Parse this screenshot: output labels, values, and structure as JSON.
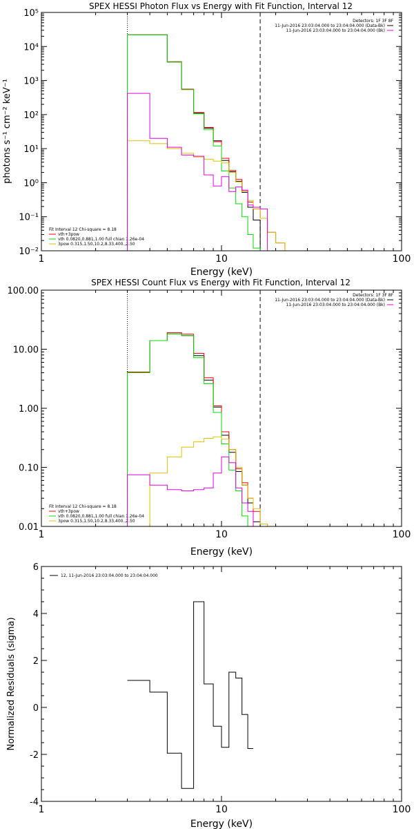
{
  "panels": [
    {
      "title": "SPEX HESSI Photon Flux vs Energy with Fit Function, Interval 12",
      "ylabel": "photons s⁻¹ cm⁻² keV⁻¹",
      "xlabel": "Energy (keV)",
      "top_right": [
        "Detectors: 1F 3F 8F",
        "11-Jun-2016 23:03:04.000 to 23:04:04.000 (Data-Bk)",
        "11-Jun-2016 23:03:04.000 to 23:04:04.000 (Bk)"
      ],
      "bottom_left": [
        "Fit Interval 12   Chi-square = 8.18",
        "vth+3pow",
        "vth 0.0820,0.881,1.00   full chian 1.26e-04",
        "3pow 0.315,1.50,10.2,8.33,400.,2.50"
      ]
    },
    {
      "title": "SPEX HESSI Count Flux vs Energy with Fit Function, Interval 12",
      "ylabel": "",
      "xlabel": "Energy (keV)",
      "top_right": [
        "Detectors: 1F 3F 8F",
        "11-Jun-2016 23:03:04.000 to 23:04:04.000 (Data-Bk)",
        "11-Jun-2016 23:03:04.000 to 23:04:04.000 (Bk)"
      ],
      "bottom_left": [
        "Fit Interval 12   Chi-square = 8.18",
        "vth+3pow",
        "vth 0.0820,0.881,1.00   full chian 1.26e-04",
        "3pow 0.315,1.50,10.2,8.33,400.,2.50"
      ]
    },
    {
      "title": "",
      "ylabel": "Normalized Residuals (sigma)",
      "xlabel": "Energy (keV)",
      "top_left": [
        "12, 11-Jun-2016 23:03:04.000 to 23:04:04.000"
      ]
    }
  ],
  "colors": {
    "black": "#000000",
    "red": "#ff0000",
    "green": "#00dd00",
    "magenta": "#e000e0",
    "yellow": "#e0c000"
  },
  "chart_data": [
    {
      "type": "line",
      "title": "SPEX HESSI Photon Flux vs Energy with Fit Function, Interval 12",
      "xlabel": "Energy (keV)",
      "ylabel": "photons s⁻¹ cm⁻² keV⁻¹",
      "xscale": "log",
      "yscale": "log",
      "xlim": [
        1,
        100
      ],
      "ylim": [
        0.01,
        100000
      ],
      "xticks": [
        1,
        10,
        100
      ],
      "xticklabels": [
        "1",
        "10",
        "100"
      ],
      "yticks": [
        0.01,
        0.1,
        1,
        10,
        100,
        1000,
        10000,
        100000
      ],
      "yticklabels": [
        "10⁻²",
        "10⁻¹",
        "10⁰",
        "10¹",
        "10²",
        "10³",
        "10⁴",
        "10⁵"
      ],
      "vlines": [
        {
          "x": 3.0,
          "style": "dotted"
        },
        {
          "x": 16.4,
          "style": "dashed"
        }
      ],
      "edges": [
        3.0,
        4.0,
        5.0,
        6.0,
        7.0,
        8.0,
        9.0,
        10.0,
        11.0,
        12.0,
        13.0,
        14.0,
        15.0,
        16.4,
        18.0,
        20.0,
        22.5,
        25.0
      ],
      "series": [
        {
          "name": "Data-Bk",
          "color": "#000000",
          "values": [
            22000,
            22000,
            3500,
            550,
            110,
            40,
            17,
            4.5,
            2.1,
            1.1,
            0.52,
            0.19,
            0.08,
            null,
            null,
            null,
            null
          ]
        },
        {
          "name": "vth+3pow",
          "color": "#ff0000",
          "values": [
            22000,
            22000,
            3600,
            560,
            115,
            42,
            16,
            5.2,
            2.3,
            1.25,
            0.6,
            0.27,
            0.17,
            0.09,
            0.035,
            0.017,
            0.01
          ]
        },
        {
          "name": "vth",
          "color": "#00dd00",
          "values": [
            22000,
            22000,
            3500,
            540,
            105,
            36,
            12,
            2.2,
            0.7,
            0.24,
            0.1,
            0.03,
            0.012,
            null,
            null,
            null,
            null
          ]
        },
        {
          "name": "3pow",
          "color": "#e0c000",
          "values": [
            17,
            14,
            10,
            7.3,
            5.7,
            4.9,
            4.3,
            3.8,
            2.0,
            1.05,
            0.55,
            0.3,
            0.17,
            0.09,
            0.035,
            0.017,
            0.01
          ]
        },
        {
          "name": "Bk",
          "color": "#e000e0",
          "values": [
            420,
            20,
            11,
            6.5,
            6,
            1.7,
            0.8,
            1.5,
            0.55,
            0.75,
            0.6,
            0.22,
            0.19,
            0.17,
            null,
            null,
            null
          ]
        }
      ]
    },
    {
      "type": "line",
      "title": "SPEX HESSI Count Flux vs Energy with Fit Function, Interval 12",
      "xlabel": "Energy (keV)",
      "xscale": "log",
      "yscale": "log",
      "xlim": [
        1,
        100
      ],
      "ylim": [
        0.01,
        100
      ],
      "xticks": [
        1,
        10,
        100
      ],
      "xticklabels": [
        "1",
        "10",
        "100"
      ],
      "yticks": [
        0.01,
        0.1,
        1,
        10,
        100
      ],
      "yticklabels": [
        "0.01",
        "0.10",
        "1.00",
        "10.00",
        "100.00"
      ],
      "vlines": [
        {
          "x": 3.0,
          "style": "dotted"
        },
        {
          "x": 16.4,
          "style": "dashed"
        }
      ],
      "edges": [
        3.0,
        4.0,
        5.0,
        6.0,
        7.0,
        8.0,
        9.0,
        10.0,
        11.0,
        12.0,
        13.0,
        14.0,
        15.0,
        16.4,
        18.0
      ],
      "series": [
        {
          "name": "Data-Bk",
          "color": "#000000",
          "values": [
            4.1,
            14,
            19,
            17,
            7.8,
            3.0,
            1.05,
            0.35,
            0.18,
            0.085,
            0.05,
            0.025,
            0.012,
            null
          ]
        },
        {
          "name": "vth+3pow",
          "color": "#ff0000",
          "values": [
            4.1,
            14,
            19,
            18,
            8.5,
            3.3,
            1.1,
            0.4,
            0.2,
            0.095,
            0.055,
            0.03,
            0.018,
            0.011
          ]
        },
        {
          "name": "vth",
          "color": "#00dd00",
          "values": [
            4.0,
            14,
            18,
            17,
            7.2,
            2.6,
            0.85,
            0.25,
            0.09,
            0.04,
            0.015,
            0.01,
            null,
            null
          ]
        },
        {
          "name": "3pow",
          "color": "#e0c000",
          "values": [
            0.01,
            0.08,
            0.15,
            0.22,
            0.27,
            0.31,
            0.33,
            0.3,
            0.2,
            0.1,
            0.05,
            0.03,
            0.02,
            0.011
          ]
        },
        {
          "name": "Bk",
          "color": "#e000e0",
          "values": [
            0.075,
            0.05,
            0.042,
            0.04,
            0.042,
            0.045,
            0.08,
            0.15,
            0.12,
            0.045,
            0.025,
            0.018,
            null,
            null
          ]
        }
      ]
    },
    {
      "type": "line",
      "xlabel": "Energy (keV)",
      "ylabel": "Normalized Residuals (sigma)",
      "xscale": "log",
      "yscale": "linear",
      "xlim": [
        1,
        100
      ],
      "ylim": [
        -4,
        6
      ],
      "xticks": [
        1,
        10,
        100
      ],
      "xticklabels": [
        "1",
        "10",
        "100"
      ],
      "yticks": [
        -4,
        -2,
        0,
        2,
        4,
        6
      ],
      "yticklabels": [
        "-4",
        "-2",
        "0",
        "2",
        "4",
        "6"
      ],
      "edges": [
        3.0,
        4.0,
        5.0,
        6.0,
        7.0,
        8.0,
        9.0,
        10.0,
        11.0,
        12.0,
        13.0,
        14.0,
        15.0,
        16.4
      ],
      "series": [
        {
          "name": "12, 11-Jun-2016 23:03:04.000 to 23:04:04.000",
          "color": "#000000",
          "values": [
            1.15,
            0.65,
            -1.95,
            -3.45,
            4.5,
            1.0,
            -0.8,
            -1.7,
            1.5,
            1.25,
            -0.3,
            -1.75,
            null
          ]
        }
      ]
    }
  ]
}
